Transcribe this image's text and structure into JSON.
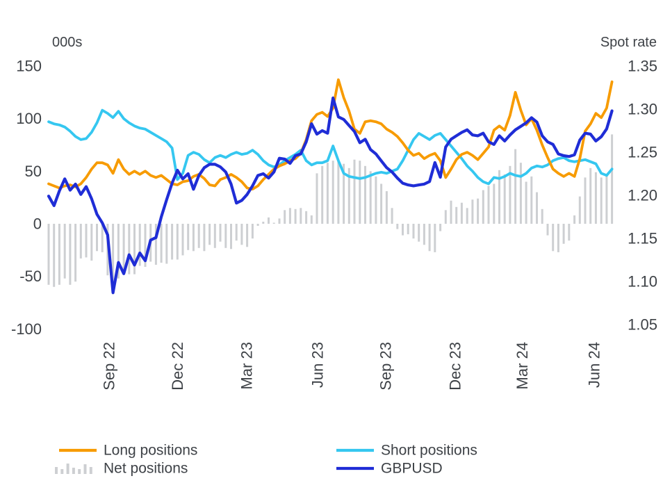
{
  "chart_data": {
    "type": "combo",
    "description": "Weekly GBP futures positioning (bars and lines, left axis, thousands of contracts) versus GBPUSD spot rate (line, right axis) from mid-2022 to mid-2024",
    "left_axis": {
      "title": "000s",
      "ticks": [
        150,
        100,
        50,
        0,
        -50,
        -100
      ],
      "range": [
        -100,
        150
      ],
      "grid": false
    },
    "right_axis": {
      "title": "Spot rate",
      "ticks": [
        1.35,
        1.3,
        1.25,
        1.2,
        1.15,
        1.1,
        1.05
      ],
      "tick_labels": [
        "1.35",
        "1.30",
        "1.25",
        "1.20",
        "1.15",
        "1.10",
        "1.05"
      ],
      "range": [
        1.05,
        1.35
      ],
      "grid": false
    },
    "x_axis": {
      "tick_labels": [
        "Sep 22",
        "Dec 22",
        "Mar 23",
        "Jun 23",
        "Sep 23",
        "Dec 23",
        "Mar 24",
        "Jun 24"
      ],
      "tick_indices": [
        11.3,
        24.0,
        36.9,
        50.1,
        62.8,
        75.8,
        88.3,
        101.7
      ],
      "n_points": 106,
      "frequency": "weekly"
    },
    "series": [
      {
        "name": "Net positions",
        "type": "bar",
        "axis": "left",
        "color": "#CDCFD2",
        "values": [
          -58,
          -60,
          -58,
          -52,
          -58,
          -55,
          -33,
          -32,
          -35,
          -26,
          -27,
          -49,
          -67,
          -52,
          -45,
          -48,
          -48,
          -40,
          -41,
          -36,
          -39,
          -37,
          -38,
          -34,
          -34,
          -30,
          -25,
          -26,
          -23,
          -26,
          -20,
          -23,
          -17,
          -23,
          -24,
          -16,
          -20,
          -22,
          -14,
          -2,
          2,
          6,
          1,
          5,
          13,
          15,
          14,
          15,
          12,
          8,
          48,
          55,
          58,
          60,
          60,
          57,
          53,
          61,
          60,
          55,
          50,
          45,
          38,
          31,
          15,
          -5,
          -11,
          -10,
          -14,
          -17,
          -20,
          -26,
          -27,
          -7,
          13,
          22,
          16,
          20,
          15,
          23,
          24,
          32,
          36,
          38,
          51,
          47,
          55,
          71,
          58,
          40,
          45,
          30,
          14,
          -11,
          -26,
          -27,
          -19,
          -16,
          8,
          26,
          44,
          53,
          49,
          44,
          46,
          85
        ]
      },
      {
        "name": "Short positions",
        "type": "line",
        "axis": "left",
        "color": "#35C7F0",
        "values": [
          97,
          95,
          94,
          92,
          88,
          83,
          80,
          81,
          87,
          96,
          108,
          105,
          101,
          107,
          100,
          96,
          93,
          91,
          90,
          87,
          84,
          81,
          78,
          72,
          42,
          48,
          65,
          68,
          66,
          61,
          58,
          63,
          65,
          63,
          66,
          68,
          66,
          67,
          70,
          66,
          60,
          56,
          54,
          56,
          60,
          63,
          66,
          70,
          60,
          56,
          58,
          58,
          60,
          74,
          60,
          48,
          45,
          44,
          43,
          44,
          46,
          48,
          49,
          48,
          50,
          52,
          60,
          70,
          80,
          86,
          83,
          80,
          84,
          86,
          80,
          74,
          68,
          62,
          55,
          50,
          44,
          40,
          38,
          44,
          43,
          45,
          48,
          46,
          45,
          48,
          53,
          55,
          54,
          56,
          60,
          62,
          63,
          60,
          59,
          60,
          61,
          59,
          57,
          48,
          46,
          52
        ]
      },
      {
        "name": "Long positions",
        "type": "line",
        "axis": "left",
        "color": "#F79B00",
        "values": [
          38,
          36,
          34,
          36,
          37,
          35,
          38,
          44,
          52,
          58,
          58,
          56,
          48,
          61,
          52,
          47,
          50,
          47,
          50,
          46,
          44,
          46,
          42,
          38,
          37,
          40,
          41,
          45,
          47,
          43,
          37,
          36,
          42,
          44,
          47,
          44,
          40,
          34,
          33,
          36,
          42,
          47,
          52,
          55,
          57,
          60,
          62,
          67,
          80,
          98,
          104,
          106,
          102,
          110,
          137,
          120,
          107,
          90,
          86,
          97,
          98,
          97,
          95,
          90,
          87,
          83,
          77,
          70,
          65,
          67,
          62,
          65,
          67,
          60,
          44,
          52,
          61,
          66,
          68,
          65,
          61,
          67,
          73,
          89,
          93,
          89,
          103,
          125,
          108,
          94,
          100,
          89,
          75,
          63,
          52,
          48,
          45,
          48,
          45,
          62,
          88,
          95,
          105,
          101,
          110,
          135
        ]
      },
      {
        "name": "GBPUSD",
        "type": "line",
        "axis": "right",
        "color": "#1F2DD6",
        "values": [
          1.199,
          1.188,
          1.205,
          1.219,
          1.206,
          1.213,
          1.201,
          1.21,
          1.196,
          1.178,
          1.168,
          1.154,
          1.087,
          1.122,
          1.109,
          1.131,
          1.119,
          1.133,
          1.124,
          1.148,
          1.151,
          1.175,
          1.195,
          1.214,
          1.229,
          1.219,
          1.225,
          1.207,
          1.223,
          1.232,
          1.236,
          1.236,
          1.233,
          1.227,
          1.213,
          1.191,
          1.194,
          1.201,
          1.211,
          1.223,
          1.225,
          1.22,
          1.227,
          1.243,
          1.242,
          1.237,
          1.246,
          1.248,
          1.262,
          1.283,
          1.271,
          1.275,
          1.272,
          1.313,
          1.291,
          1.288,
          1.281,
          1.274,
          1.261,
          1.265,
          1.253,
          1.248,
          1.24,
          1.232,
          1.227,
          1.22,
          1.214,
          1.212,
          1.211,
          1.212,
          1.213,
          1.216,
          1.238,
          1.221,
          1.256,
          1.265,
          1.269,
          1.273,
          1.276,
          1.27,
          1.269,
          1.272,
          1.262,
          1.259,
          1.269,
          1.263,
          1.27,
          1.276,
          1.28,
          1.284,
          1.29,
          1.285,
          1.269,
          1.262,
          1.259,
          1.248,
          1.246,
          1.245,
          1.247,
          1.264,
          1.272,
          1.271,
          1.263,
          1.268,
          1.277,
          1.298
        ]
      }
    ],
    "legend": {
      "position": "bottom",
      "columns": [
        [
          {
            "label": "Long positions",
            "marker": "line",
            "color": "#F79B00"
          },
          {
            "label": "Net positions",
            "marker": "bars",
            "color": "#CDCFD2"
          }
        ],
        [
          {
            "label": "Short positions",
            "marker": "line",
            "color": "#35C7F0"
          },
          {
            "label": "GBPUSD",
            "marker": "line",
            "color": "#1F2DD6"
          }
        ]
      ]
    },
    "colors": {
      "long": "#F79B00",
      "short": "#35C7F0",
      "gbpusd": "#1F2DD6",
      "net_bars": "#CDCFD2",
      "text": "#3e4247",
      "background": "#FFFFFF"
    }
  }
}
